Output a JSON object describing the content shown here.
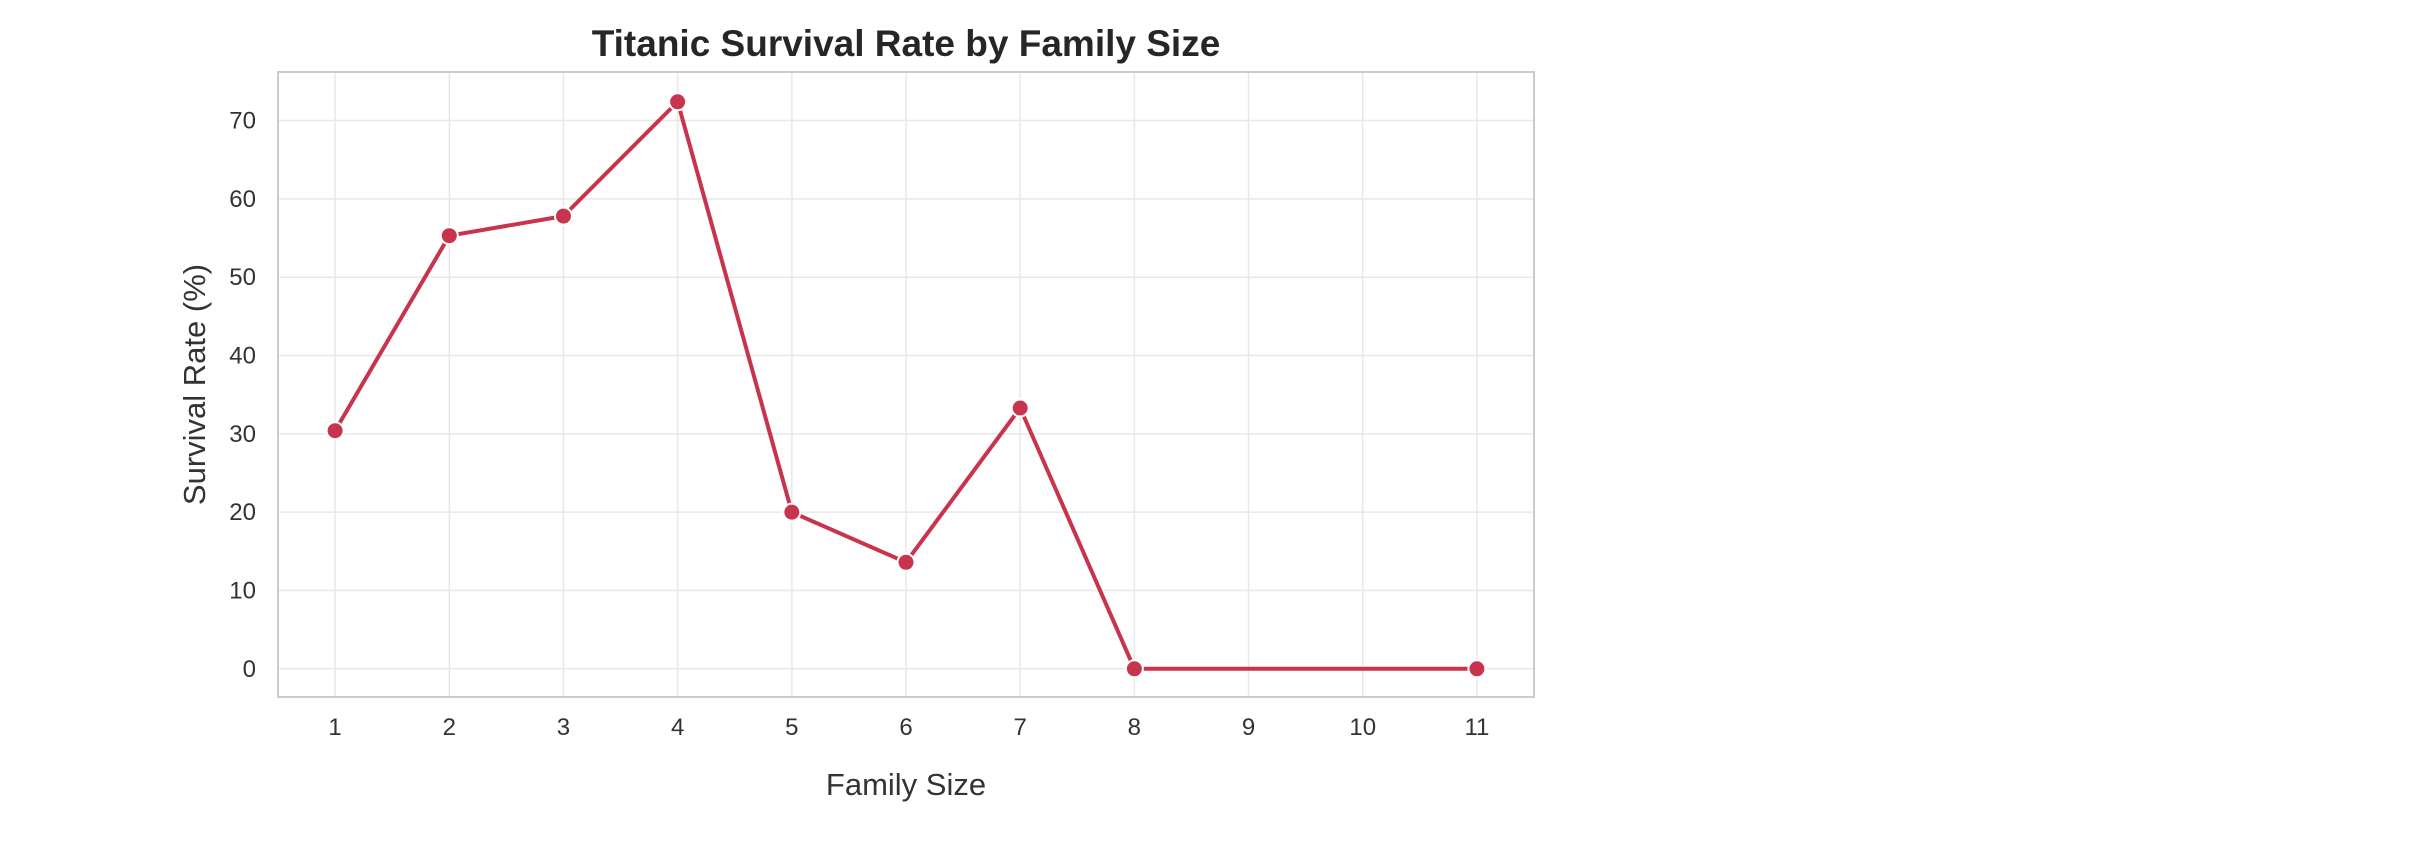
{
  "chart_data": {
    "type": "line",
    "title": "Titanic Survival Rate by Family Size",
    "xlabel": "Family Size",
    "ylabel": "Survival Rate (%)",
    "x_ticks": [
      "1",
      "2",
      "3",
      "4",
      "5",
      "6",
      "7",
      "8",
      "9",
      "10",
      "11"
    ],
    "y_ticks": [
      "0",
      "10",
      "20",
      "30",
      "40",
      "50",
      "60",
      "70"
    ],
    "xlim": [
      0.5,
      11.5
    ],
    "ylim": [
      -3.6,
      76.2
    ],
    "grid": true,
    "series": [
      {
        "name": "Survival Rate",
        "color": "#c8344d",
        "marker": "circle",
        "x": [
          1,
          2,
          3,
          4,
          5,
          6,
          7,
          8,
          11
        ],
        "values": [
          30.4,
          55.3,
          57.8,
          72.4,
          20.0,
          13.6,
          33.3,
          0.0,
          0.0
        ]
      }
    ]
  }
}
